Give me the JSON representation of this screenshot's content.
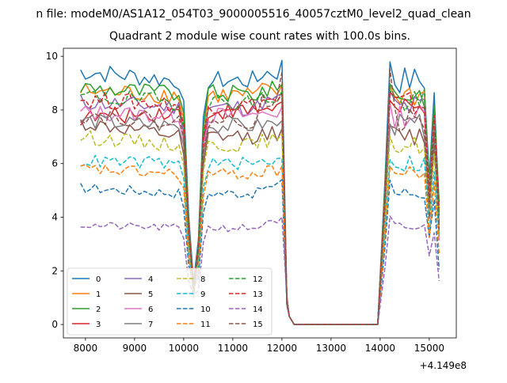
{
  "figure": {
    "suptitle": "n file: modeM0/AS1A12_054T03_9000005516_40057cztM0_level2_quad_clean",
    "offset_label": "+4.149e8"
  },
  "chart_data": {
    "type": "line",
    "title": "Quadrant 2 module wise count rates with 100.0s bins.",
    "xlabel": "",
    "ylabel": "",
    "x_offset": 414900000,
    "xlim": [
      7550,
      15550
    ],
    "ylim": [
      -0.5,
      10.3
    ],
    "x_ticks": [
      8000,
      9000,
      10000,
      11000,
      12000,
      13000,
      14000,
      15000
    ],
    "y_ticks": [
      0,
      2,
      4,
      6,
      8,
      10
    ],
    "grid": false,
    "legend_position": "lower-left",
    "legend_columns": 4,
    "gap_x": [
      12150,
      12250,
      13050,
      13950
    ],
    "series": [
      {
        "name": "0",
        "color": "#1f77b4",
        "dash": "solid",
        "level": 9.1,
        "start": 9.45,
        "peak": 9.85
      },
      {
        "name": "1",
        "color": "#ff7f0e",
        "dash": "solid",
        "level": 8.55,
        "start": 8.7,
        "peak": 8.9
      },
      {
        "name": "2",
        "color": "#2ca02c",
        "dash": "solid",
        "level": 8.6,
        "start": 8.85,
        "peak": 8.95
      },
      {
        "name": "3",
        "color": "#d62728",
        "dash": "solid",
        "level": 7.95,
        "start": 7.7,
        "peak": 8.3
      },
      {
        "name": "4",
        "color": "#9467bd",
        "dash": "solid",
        "level": 8.1,
        "start": 8.3,
        "peak": 8.6
      },
      {
        "name": "5",
        "color": "#8c564b",
        "dash": "solid",
        "level": 7.0,
        "start": 7.5,
        "peak": 7.3
      },
      {
        "name": "6",
        "color": "#e377c2",
        "dash": "solid",
        "level": 7.8,
        "start": 7.9,
        "peak": 8.1
      },
      {
        "name": "7",
        "color": "#7f7f7f",
        "dash": "solid",
        "level": 7.4,
        "start": 7.6,
        "peak": 7.6
      },
      {
        "name": "8",
        "color": "#bcbd22",
        "dash": "dashed",
        "level": 6.7,
        "start": 7.0,
        "peak": 7.1
      },
      {
        "name": "9",
        "color": "#17becf",
        "dash": "dashed",
        "level": 6.0,
        "start": 6.1,
        "peak": 6.2
      },
      {
        "name": "10",
        "color": "#1f77b4",
        "dash": "dashed",
        "level": 4.9,
        "start": 5.1,
        "peak": 5.4
      },
      {
        "name": "11",
        "color": "#ff7f0e",
        "dash": "dashed",
        "level": 5.6,
        "start": 5.8,
        "peak": 5.9
      },
      {
        "name": "12",
        "color": "#2ca02c",
        "dash": "dashed",
        "level": 8.3,
        "start": 8.5,
        "peak": 8.7
      },
      {
        "name": "13",
        "color": "#d62728",
        "dash": "dashed",
        "level": 8.2,
        "start": 8.4,
        "peak": 8.6
      },
      {
        "name": "14",
        "color": "#9467bd",
        "dash": "dashed",
        "level": 3.6,
        "start": 3.7,
        "peak": 4.0
      },
      {
        "name": "15",
        "color": "#8c564b",
        "dash": "dashed",
        "level": 7.6,
        "start": 7.8,
        "peak": 9.4
      }
    ]
  }
}
